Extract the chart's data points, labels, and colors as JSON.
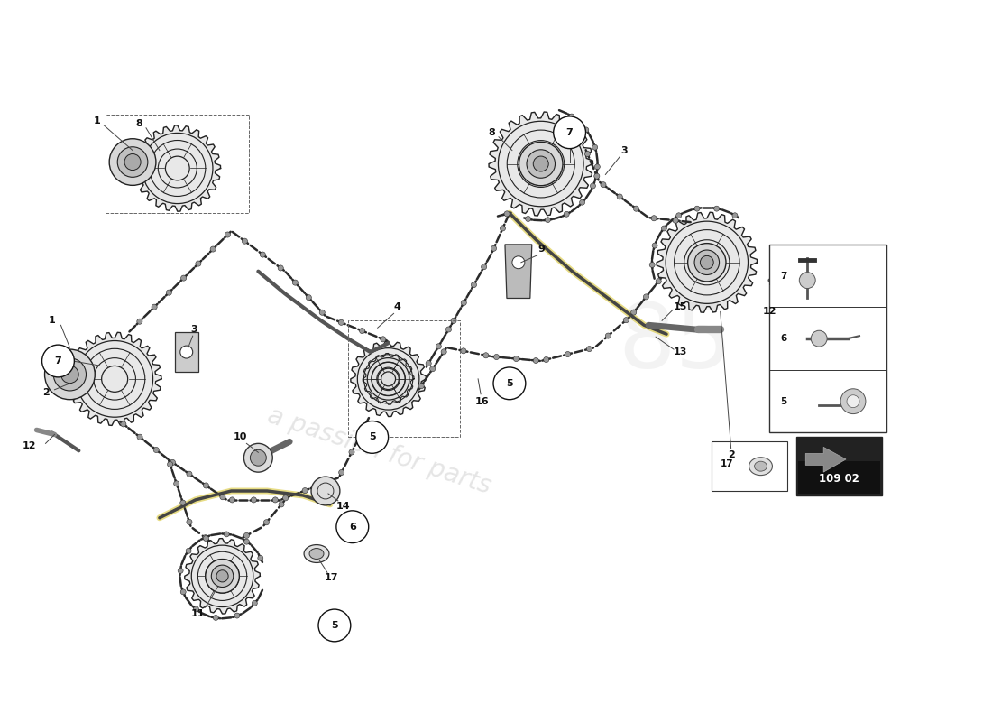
{
  "bg_color": "#ffffff",
  "watermark_text1": "a passion for parts",
  "watermark_text2": "85",
  "part_number": "109 02"
}
